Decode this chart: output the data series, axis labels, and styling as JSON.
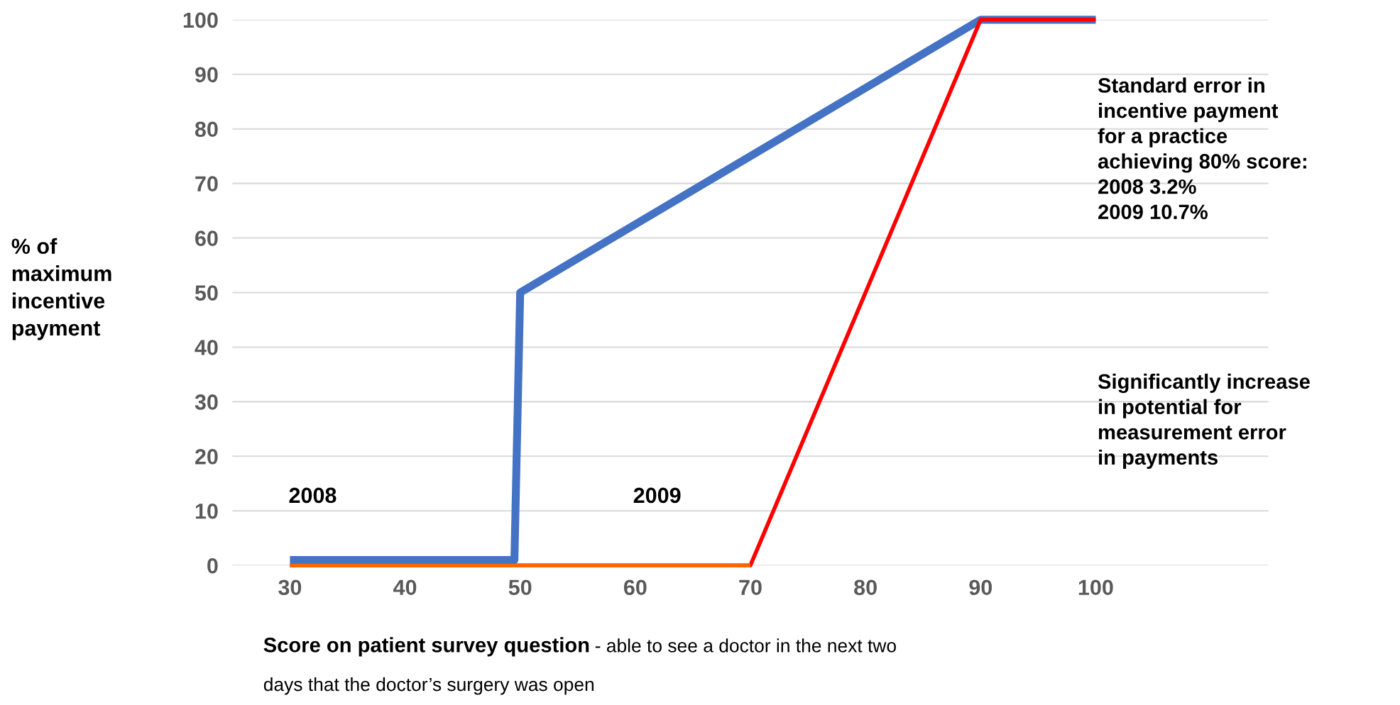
{
  "chart_data": {
    "type": "line",
    "ylabel": "% of\nmaximum\nincentive\npayment",
    "xlabel": "Score on patient survey question - able to see a doctor in the next two\ndays that the doctor’s surgery was open",
    "series": [
      {
        "color": "#4472c4",
        "x": [
          30,
          49.5,
          50,
          90,
          100
        ],
        "values": [
          1,
          1,
          50,
          100,
          100
        ]
      },
      {
        "color": "#ff0000",
        "x": [
          30,
          70,
          90,
          100
        ],
        "values": [
          0,
          0,
          100,
          100
        ]
      },
      {
        "color": "#ff6600",
        "x": [
          30,
          70
        ],
        "values": [
          0,
          0
        ]
      }
    ],
    "xlim": [
      25,
      115
    ],
    "xticks": [
      30,
      40,
      50,
      60,
      70,
      80,
      90,
      100
    ],
    "ylim": [
      0,
      100
    ],
    "yticks": [
      0,
      10,
      20,
      30,
      40,
      50,
      60,
      70,
      80,
      90,
      100
    ],
    "grid": "y",
    "annotations": [
      "2008",
      "2009",
      "Standard error in\nincentive payment\nfor a practice\nachieving 80% score:\n2008 3.2%\n2009 10.7%",
      "Significantly increase\nin potential for\nmeasurement error\nin payments"
    ]
  }
}
